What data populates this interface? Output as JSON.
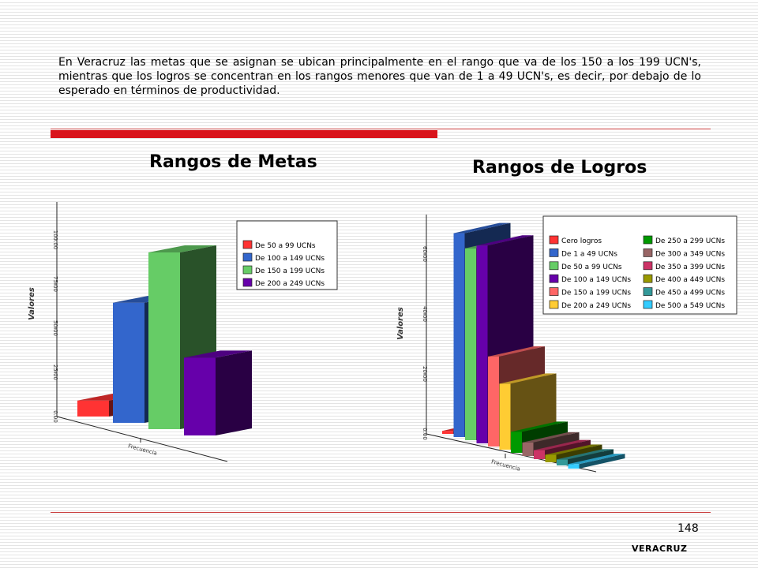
{
  "intro_text": "En Veracruz las metas que se asignan se ubican principalmente en el rango que va de los 150 a los 199 UCN's, mientras que los logros se concentran en los rangos menores que van de 1 a 49 UCN's, es decir, por debajo de lo esperado en términos de productividad.",
  "page_number": "148",
  "footer": "VERACRUZ",
  "chart_data": [
    {
      "type": "bar",
      "title": "Rangos de Metas",
      "xlabel": "Frecuencia",
      "ylabel": "Valores",
      "ylim": [
        0,
        100
      ],
      "y_ticks": [
        "0.00",
        "25.00",
        "50.00",
        "75.00",
        "100.00"
      ],
      "categories": [
        "Frecuencia"
      ],
      "legend_position": "top-right",
      "series": [
        {
          "name": "De 50 a 99 UCNs",
          "values": [
            9
          ],
          "color": "#ff3333"
        },
        {
          "name": "De 100 a 149 UCNs",
          "values": [
            68
          ],
          "color": "#3366cc"
        },
        {
          "name": "De 150 a 199 UCNs",
          "values": [
            100
          ],
          "color": "#66cc66"
        },
        {
          "name": "De 200 a 249 UCNs",
          "values": [
            44
          ],
          "color": "#6600aa"
        }
      ]
    },
    {
      "type": "bar",
      "title": "Rangos de Logros",
      "xlabel": "Frecuencia",
      "ylabel": "Valores",
      "ylim": [
        0,
        60
      ],
      "y_ticks": [
        "0.00",
        "20.00",
        "40.00",
        "60.00"
      ],
      "categories": [
        "Frecuencia"
      ],
      "legend_position": "top-right",
      "series": [
        {
          "name": "Cero logros",
          "values": [
            1
          ],
          "color": "#ff3333"
        },
        {
          "name": "De 1 a 49 UCNs",
          "values": [
            68
          ],
          "color": "#3366cc"
        },
        {
          "name": "De 50 a 99 UCNs",
          "values": [
            64
          ],
          "color": "#66cc66"
        },
        {
          "name": "De 100 a 149 UCNs",
          "values": [
            66
          ],
          "color": "#6600aa"
        },
        {
          "name": "De 150 a 199 UCNs",
          "values": [
            30
          ],
          "color": "#ff6666"
        },
        {
          "name": "De 200 a 249 UCNs",
          "values": [
            22
          ],
          "color": "#ffcc33"
        },
        {
          "name": "De 250 a 299 UCNs",
          "values": [
            7
          ],
          "color": "#009900"
        },
        {
          "name": "De 300 a 349 UCNs",
          "values": [
            4.5
          ],
          "color": "#996666"
        },
        {
          "name": "De 350 a 399 UCNs",
          "values": [
            3
          ],
          "color": "#cc3366"
        },
        {
          "name": "De 400 a 449 UCNs",
          "values": [
            2.5
          ],
          "color": "#999900"
        },
        {
          "name": "De 450 a 499 UCNs",
          "values": [
            2
          ],
          "color": "#339999"
        },
        {
          "name": "De 500 a 549 UCNs",
          "values": [
            1.5
          ],
          "color": "#33ccff"
        }
      ]
    }
  ]
}
